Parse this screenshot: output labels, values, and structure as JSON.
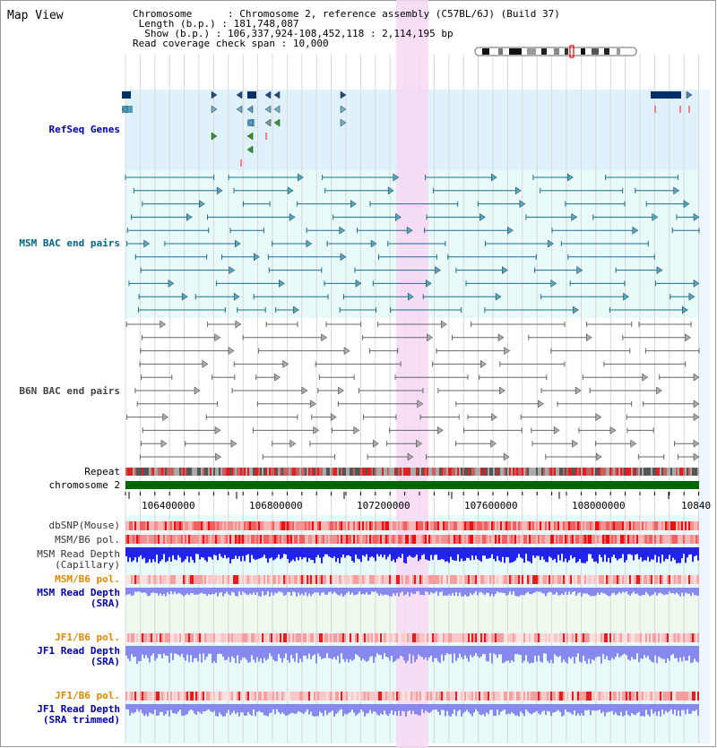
{
  "page": {
    "title": "Map View"
  },
  "info": {
    "chromosome_key": "Chromosome",
    "chromosome_val": "Chromosome 2, reference assembly (C57BL/6J) (Build 37)",
    "length_key": "Length (b.p.)",
    "length_val": "181,748,087",
    "show_key": "Show (b.p.)",
    "show_val": "106,337,924-108,452,118 : 2,114,195 bp",
    "coverage_key": "Read coverage check span",
    "coverage_val": "10,000"
  },
  "tracks": {
    "refseq": {
      "label": "RefSeq Genes",
      "color": "#0000aa"
    },
    "msm_bac": {
      "label": "MSM BAC end pairs",
      "color": "#006688"
    },
    "b6n_bac": {
      "label": "B6N BAC end pairs",
      "color": "#444444"
    },
    "repeat": {
      "label": "Repeat"
    },
    "chromosome": {
      "label": "chromosome 2"
    },
    "dbsnp": {
      "label": "dbSNP(Mouse)"
    },
    "msm_b6_pol": {
      "label": "MSM/B6 pol."
    },
    "msm_depth_cap": {
      "label": "MSM Read Depth\n(Capillary)"
    },
    "msm_b6_pol2": {
      "label": "MSM/B6 pol.",
      "color": "#e08800"
    },
    "msm_depth_sra": {
      "label": "MSM Read Depth\n(SRA)",
      "color": "#0000aa"
    },
    "jf1_b6_pol": {
      "label": "JF1/B6 pol.",
      "color": "#e08800"
    },
    "jf1_depth_sra": {
      "label": "JF1 Read Depth\n(SRA)",
      "color": "#0000aa"
    },
    "jf1_b6_pol2": {
      "label": "JF1/B6 pol.",
      "color": "#e08800"
    },
    "jf1_depth_trim": {
      "label": "JF1 Read Depth\n(SRA trimmed)",
      "color": "#0000aa"
    }
  },
  "axis": {
    "ticks": [
      "106400000",
      "106800000",
      "107200000",
      "107600000",
      "108000000",
      "10840"
    ]
  },
  "colors": {
    "refseq_bg": "#dff2fb",
    "msm_bg": "#e8fafa",
    "highlight": "#f7d8f3",
    "chrom_green": "#006600",
    "depth_dark": "#2222ee",
    "depth_light": "#8888ee"
  }
}
